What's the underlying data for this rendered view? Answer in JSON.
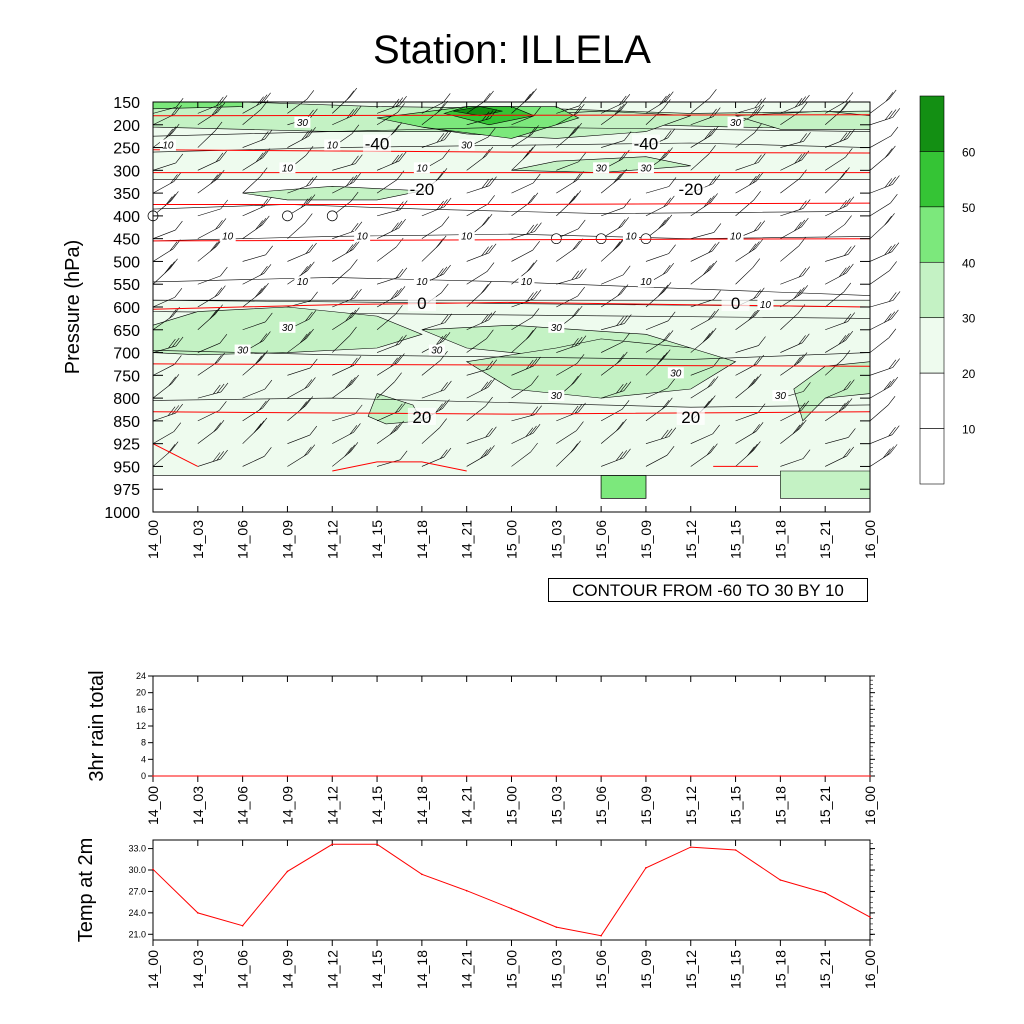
{
  "title": "Station: ILLELA",
  "note": "CONTOUR FROM -60 TO 30 BY 10",
  "colors": {
    "shade": [
      "#ffffff",
      "#ffffff",
      "#eefbee",
      "#c4f2c4",
      "#7ce87c",
      "#35c435",
      "#138f13"
    ],
    "contour": "#000000",
    "temp_contour": "#ff0000",
    "series": "#ff0000"
  },
  "chart_data": [
    {
      "type": "heatmap",
      "title": "Station: ILLELA",
      "ylabel": "Pressure (hPa)",
      "xlabel": "",
      "x_ticks": [
        "14_00",
        "14_03",
        "14_06",
        "14_09",
        "14_12",
        "14_15",
        "14_18",
        "14_21",
        "15_00",
        "15_03",
        "15_06",
        "15_09",
        "15_12",
        "15_15",
        "15_18",
        "15_21",
        "16_00"
      ],
      "y_ticks": [
        "150",
        "200",
        "250",
        "300",
        "350",
        "400",
        "450",
        "500",
        "550",
        "600",
        "650",
        "700",
        "750",
        "800",
        "850",
        "925",
        "950",
        "975",
        "1000"
      ],
      "ylim": [
        150,
        1000
      ],
      "colorbar": {
        "levels": [
          "10",
          "20",
          "30",
          "40",
          "50",
          "60"
        ]
      },
      "contour_labels": [
        {
          "text": "10",
          "x": "14_01",
          "y": "250"
        },
        {
          "text": "30",
          "x": "14_10",
          "y": "200"
        },
        {
          "text": "10",
          "x": "14_09",
          "y": "300"
        },
        {
          "text": "10",
          "x": "14_12",
          "y": "250"
        },
        {
          "text": "10",
          "x": "14_18",
          "y": "300"
        },
        {
          "text": "30",
          "x": "14_21",
          "y": "250"
        },
        {
          "text": "30",
          "x": "15_06",
          "y": "300"
        },
        {
          "text": "30",
          "x": "15_09",
          "y": "300"
        },
        {
          "text": "30",
          "x": "15_15",
          "y": "200"
        },
        {
          "text": "10",
          "x": "14_05",
          "y": "450"
        },
        {
          "text": "10",
          "x": "14_14",
          "y": "450"
        },
        {
          "text": "10",
          "x": "14_21",
          "y": "450"
        },
        {
          "text": "10",
          "x": "15_08",
          "y": "450"
        },
        {
          "text": "10",
          "x": "15_15",
          "y": "450"
        },
        {
          "text": "10",
          "x": "14_10",
          "y": "550"
        },
        {
          "text": "10",
          "x": "14_18",
          "y": "550"
        },
        {
          "text": "10",
          "x": "15_01",
          "y": "550"
        },
        {
          "text": "10",
          "x": "15_09",
          "y": "550"
        },
        {
          "text": "10",
          "x": "15_17",
          "y": "600"
        },
        {
          "text": "30",
          "x": "14_09",
          "y": "650"
        },
        {
          "text": "30",
          "x": "14_06",
          "y": "700"
        },
        {
          "text": "30",
          "x": "15_03",
          "y": "650"
        },
        {
          "text": "30",
          "x": "14_19",
          "y": "700"
        },
        {
          "text": "30",
          "x": "15_11",
          "y": "750"
        },
        {
          "text": "30",
          "x": "15_03",
          "y": "800"
        },
        {
          "text": "30",
          "x": "15_18",
          "y": "800"
        }
      ],
      "temperature_labels": [
        {
          "text": "-40",
          "x": "14_15",
          "y": "250"
        },
        {
          "text": "-40",
          "x": "15_09",
          "y": "250"
        },
        {
          "text": "-20",
          "x": "14_18",
          "y": "350"
        },
        {
          "text": "-20",
          "x": "15_12",
          "y": "350"
        },
        {
          "text": "0",
          "x": "14_18",
          "y": "600"
        },
        {
          "text": "0",
          "x": "15_15",
          "y": "600"
        },
        {
          "text": "20",
          "x": "14_18",
          "y": "850"
        },
        {
          "text": "20",
          "x": "15_12",
          "y": "850"
        }
      ]
    },
    {
      "type": "line",
      "ylabel": "3hr rain total",
      "categories": [
        "14_00",
        "14_03",
        "14_06",
        "14_09",
        "14_12",
        "14_15",
        "14_18",
        "14_21",
        "15_00",
        "15_03",
        "15_06",
        "15_09",
        "15_12",
        "15_15",
        "15_18",
        "15_21",
        "16_00"
      ],
      "y_ticks": [
        "0",
        "4",
        "8",
        "12",
        "16",
        "20",
        "24"
      ],
      "ylim": [
        0,
        24
      ],
      "values": [
        0,
        0,
        0,
        0,
        0,
        0,
        0,
        0,
        0,
        0,
        0,
        0,
        0,
        0,
        0,
        0,
        0
      ]
    },
    {
      "type": "line",
      "ylabel": "Temp at 2m",
      "categories": [
        "14_00",
        "14_03",
        "14_06",
        "14_09",
        "14_12",
        "14_15",
        "14_18",
        "14_21",
        "15_00",
        "15_03",
        "15_06",
        "15_09",
        "15_12",
        "15_15",
        "15_18",
        "15_21",
        "16_00"
      ],
      "y_ticks": [
        "21.0",
        "24.0",
        "27.0",
        "30.0",
        "33.0"
      ],
      "ylim": [
        20.2,
        34.2
      ],
      "values": [
        30.1,
        24.0,
        22.2,
        29.8,
        33.6,
        33.6,
        29.4,
        27.1,
        24.6,
        22.0,
        20.8,
        30.3,
        33.2,
        32.8,
        28.6,
        26.8,
        23.4
      ]
    }
  ]
}
